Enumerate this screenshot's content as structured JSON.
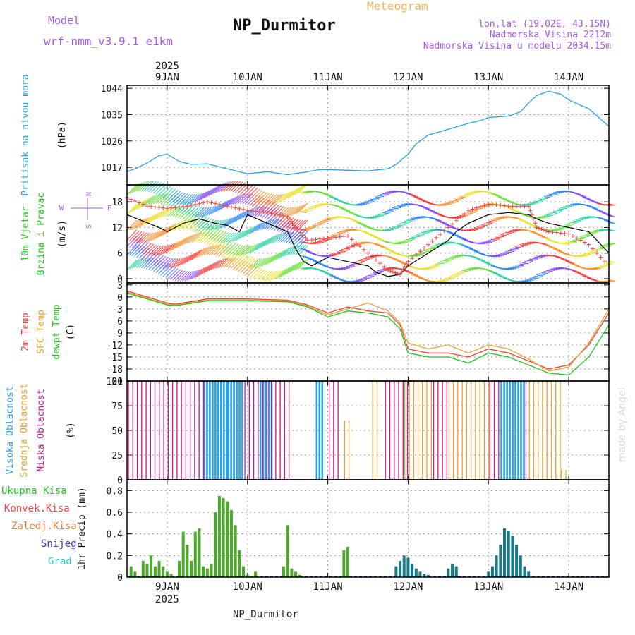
{
  "header": {
    "model_label": "Model",
    "model_name": "wrf-nmm_v3.9.1 e1km",
    "title": "NP_Durmitor",
    "subtitle": "Meteogram",
    "coords": "lon,lat (19.02E, 43.15N)",
    "elevation": "Nadmorska Visina 2212m",
    "model_elevation": "Nadmorska Visina u modelu 2034.15m",
    "footer": "NP_Durmitor",
    "watermark": "made by Angel",
    "colors": {
      "purple": "#a855e8",
      "orange": "#f2b25c",
      "blue": "#29a0e0",
      "green": "#22c31c",
      "red": "#e8433b"
    }
  },
  "chart_data": [
    {
      "type": "line",
      "name": "pressure",
      "title": "",
      "ylabel": [
        "Pritisak na nivou mora",
        "(hPa)"
      ],
      "year": "2025",
      "x_ticks": [
        "9JAN",
        "10JAN",
        "11JAN",
        "12JAN",
        "13JAN",
        "14JAN"
      ],
      "x_range_days": [
        8.5,
        14.5
      ],
      "yticks": [
        "1017",
        "1026",
        "1035",
        "1044"
      ],
      "ylim": [
        1011,
        1045
      ],
      "series": [
        {
          "color": "#29a0e0",
          "x": [
            8.5,
            8.6,
            8.75,
            8.9,
            9.0,
            9.15,
            9.3,
            9.5,
            9.75,
            10.0,
            10.25,
            10.5,
            10.75,
            10.9,
            11.0,
            11.25,
            11.5,
            11.75,
            11.85,
            12.0,
            12.1,
            12.25,
            12.5,
            12.75,
            12.9,
            13.0,
            13.25,
            13.4,
            13.5,
            13.6,
            13.75,
            13.9,
            14.0,
            14.25,
            14.5
          ],
          "y": [
            1015.5,
            1016.5,
            1018.5,
            1021,
            1021.5,
            1019,
            1018,
            1018.2,
            1016.5,
            1014.8,
            1015.5,
            1014.5,
            1015.5,
            1016.2,
            1016.2,
            1016,
            1015.8,
            1016.5,
            1018,
            1021.5,
            1025,
            1028,
            1030,
            1032,
            1033,
            1034,
            1034.5,
            1036,
            1039,
            1041.5,
            1043,
            1042,
            1040,
            1037,
            1031
          ]
        }
      ]
    },
    {
      "type": "line",
      "name": "wind",
      "title": "",
      "ylabel": [
        "10m Vjetar",
        "Brzina i Pravac",
        "(m/s)"
      ],
      "direction_legend": [
        "N",
        "E",
        "S",
        "W"
      ],
      "yticks": [
        "0",
        "6",
        "12",
        "18"
      ],
      "ylim": [
        -1,
        22
      ],
      "series": [
        {
          "name": "mean speed",
          "color": "#000000",
          "x": [
            8.5,
            8.7,
            8.9,
            9.0,
            9.2,
            9.4,
            9.6,
            9.75,
            9.9,
            10.0,
            10.25,
            10.5,
            10.6,
            10.7,
            10.8,
            10.9,
            11.0,
            11.25,
            11.5,
            11.6,
            11.75,
            11.9,
            12.0,
            12.25,
            12.5,
            12.6,
            12.75,
            13.0,
            13.25,
            13.5,
            13.6,
            13.75,
            14.0,
            14.25,
            14.5
          ],
          "y": [
            15,
            13.5,
            12,
            11,
            13,
            14,
            13,
            12.5,
            11,
            15,
            13,
            11,
            7,
            4,
            3,
            4,
            5,
            4,
            3,
            1.5,
            0.5,
            1,
            3,
            6,
            9,
            11,
            13,
            15,
            15.5,
            15,
            14,
            13,
            12,
            11,
            6
          ]
        },
        {
          "name": "gust",
          "color": "#e8433b",
          "x": [
            8.5,
            8.75,
            9.0,
            9.25,
            9.5,
            9.75,
            10.0,
            10.25,
            10.5,
            10.6,
            10.75,
            11.0,
            11.25,
            11.5,
            11.75,
            11.9,
            12.0,
            12.25,
            12.5,
            12.75,
            13.0,
            13.25,
            13.5,
            13.6,
            13.75,
            14.0,
            14.25,
            14.5
          ],
          "y": [
            19,
            17,
            16.5,
            17,
            18,
            17,
            16,
            15.5,
            14.5,
            12,
            9,
            9.5,
            10,
            6,
            2,
            1,
            4,
            8,
            12,
            16,
            17.5,
            17,
            17,
            12,
            11,
            10.5,
            8,
            3
          ]
        }
      ]
    },
    {
      "type": "line",
      "name": "temperature",
      "title": "",
      "ylabel": [
        "2m Temp",
        "SFC Temp",
        "dewpt Temp",
        "(C)"
      ],
      "yticks": [
        "-21",
        "-18",
        "-15",
        "-12",
        "-9",
        "-6",
        "-3",
        "0",
        "3"
      ],
      "ylim": [
        -21,
        3.5
      ],
      "series": [
        {
          "name": "2m Temp",
          "color": "#e8433b",
          "x": [
            8.5,
            8.75,
            9.0,
            9.1,
            9.5,
            10.0,
            10.5,
            10.75,
            11.0,
            11.25,
            11.5,
            11.75,
            11.9,
            12.0,
            12.25,
            12.5,
            12.75,
            13.0,
            13.25,
            13.5,
            13.75,
            14.0,
            14.25,
            14.5
          ],
          "y": [
            1.5,
            0,
            -1.5,
            -1.8,
            -0.5,
            -0.5,
            -0.8,
            -2,
            -4,
            -2.5,
            -3.5,
            -4,
            -7,
            -13,
            -14,
            -14,
            -15,
            -13,
            -14,
            -16,
            -18,
            -17,
            -12,
            -4
          ]
        },
        {
          "name": "SFC Temp",
          "color": "#e8a030",
          "x": [
            8.5,
            8.75,
            9.0,
            9.1,
            9.5,
            10.0,
            10.5,
            10.75,
            11.0,
            11.25,
            11.5,
            11.75,
            11.9,
            12.0,
            12.25,
            12.5,
            12.75,
            13.0,
            13.25,
            13.5,
            13.75,
            14.0,
            14.25,
            14.5
          ],
          "y": [
            1.2,
            -0.3,
            -1.8,
            -2,
            -0.8,
            -0.8,
            -1,
            -2.3,
            -4.5,
            -3,
            -1.5,
            -3.5,
            -6.5,
            -11.5,
            -13,
            -12,
            -14,
            -12,
            -13,
            -15.5,
            -18.5,
            -17.5,
            -11.5,
            -3
          ]
        },
        {
          "name": "dewpt Temp",
          "color": "#22c31c",
          "x": [
            8.5,
            8.75,
            9.0,
            9.1,
            9.5,
            10.0,
            10.5,
            10.75,
            11.0,
            11.25,
            11.5,
            11.75,
            11.9,
            12.0,
            12.25,
            12.5,
            12.75,
            13.0,
            13.25,
            13.5,
            13.75,
            14.0,
            14.25,
            14.5
          ],
          "y": [
            1,
            -0.5,
            -2,
            -2.2,
            -1,
            -1,
            -1.2,
            -2.5,
            -5,
            -3.5,
            -4,
            -5,
            -8,
            -14,
            -15,
            -15,
            -16.5,
            -14,
            -15,
            -17,
            -19,
            -19.5,
            -15,
            -7
          ]
        }
      ]
    },
    {
      "type": "bar",
      "name": "clouds",
      "title": "",
      "ylabel": [
        "Visoka Oblacnost",
        "Srednja Oblacnost",
        "Niska Oblacnost",
        "(%)"
      ],
      "yticks": [
        "0",
        "25",
        "50",
        "75",
        "100"
      ],
      "ylim": [
        0,
        100
      ],
      "series": [
        {
          "name": "Visoka Oblacnost",
          "color": "#29a0e0",
          "segments": [
            [
              9.45,
              9.75,
              100
            ],
            [
              9.75,
              9.95,
              100
            ],
            [
              10.15,
              10.3,
              100
            ],
            [
              10.85,
              10.95,
              100
            ],
            [
              13.15,
              13.45,
              100
            ]
          ]
        },
        {
          "name": "Srednja Oblacnost",
          "color": "#e8a030",
          "segments": [
            [
              11.2,
              11.3,
              60
            ],
            [
              11.55,
              11.65,
              100
            ],
            [
              11.95,
              12.3,
              100
            ],
            [
              12.5,
              13.0,
              100
            ],
            [
              13.5,
              13.9,
              100
            ],
            [
              13.9,
              14.0,
              10
            ]
          ]
        },
        {
          "name": "Niska Oblacnost",
          "color": "#c21a8a",
          "segments": [
            [
              8.5,
              9.45,
              100
            ],
            [
              9.95,
              10.5,
              100
            ],
            [
              11.0,
              11.15,
              100
            ],
            [
              11.7,
              12.0,
              100
            ],
            [
              12.3,
              12.5,
              100
            ],
            [
              13.0,
              13.15,
              100
            ],
            [
              13.45,
              13.5,
              100
            ]
          ]
        }
      ]
    },
    {
      "type": "bar",
      "name": "precip",
      "title": "",
      "ylabel": [
        "1hr Precip (mm)"
      ],
      "legend": [
        "Ukupna Kisa",
        "Konvek.Kisa",
        "Zaledj.Kisa",
        "Snijeg",
        "Grad"
      ],
      "legend_colors": [
        "#22c31c",
        "#e8433b",
        "#f07828",
        "#3a3ad8",
        "#20c8c8"
      ],
      "yticks": [
        "0",
        "0.2",
        "0.4",
        "0.6",
        "0.8"
      ],
      "ylim": [
        0,
        0.9
      ],
      "series": [
        {
          "name": "Ukupna Kisa",
          "color": "#4caa2a",
          "x": [
            8.55,
            8.6,
            8.7,
            8.75,
            8.8,
            8.85,
            8.9,
            8.95,
            9.0,
            9.05,
            9.15,
            9.2,
            9.25,
            9.3,
            9.35,
            9.4,
            9.45,
            9.5,
            9.55,
            9.6,
            9.65,
            9.7,
            9.75,
            9.8,
            9.85,
            9.9,
            9.95,
            10.0,
            10.05,
            10.1,
            10.45,
            10.5,
            10.55,
            10.6,
            10.65,
            11.2,
            11.25
          ],
          "y": [
            0.1,
            0.05,
            0.15,
            0.12,
            0.2,
            0.1,
            0.15,
            0.1,
            0.05,
            0.03,
            0.15,
            0.42,
            0.3,
            0.15,
            0.42,
            0.45,
            0.1,
            0.08,
            0.12,
            0.6,
            0.75,
            0.73,
            0.7,
            0.62,
            0.48,
            0.25,
            0.1,
            0.02,
            0.01,
            0.05,
            0.1,
            0.48,
            0.08,
            0.05,
            0.02,
            0.25,
            0.28
          ]
        },
        {
          "name": "Snijeg",
          "color": "#1a7a8a",
          "x": [
            11.85,
            11.9,
            11.95,
            12.0,
            12.05,
            12.1,
            12.15,
            12.2,
            12.25,
            12.5,
            12.55,
            12.6,
            13.0,
            13.05,
            13.1,
            13.15,
            13.2,
            13.25,
            13.3,
            13.35,
            13.4,
            13.45,
            13.5
          ],
          "y": [
            0.1,
            0.15,
            0.2,
            0.18,
            0.12,
            0.08,
            0.05,
            0.03,
            0.02,
            0.08,
            0.12,
            0.1,
            0.05,
            0.1,
            0.2,
            0.3,
            0.45,
            0.43,
            0.38,
            0.3,
            0.2,
            0.1,
            0.05
          ]
        }
      ]
    }
  ]
}
